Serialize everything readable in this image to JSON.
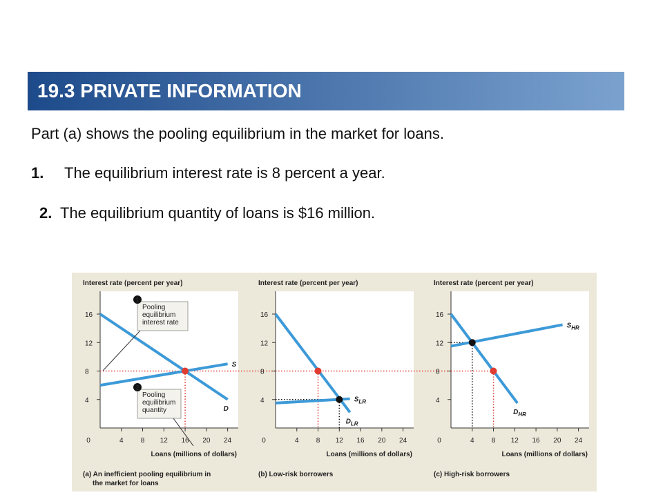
{
  "header": {
    "title": "19.3 PRIVATE INFORMATION"
  },
  "text": {
    "intro": "Part (a) shows the pooling equilibrium in the market for loans.",
    "points": [
      {
        "number": "1.",
        "text": "The equilibrium interest rate is 8 percent a year."
      },
      {
        "number": "2.",
        "text": "The equilibrium quantity of loans is $16 million."
      }
    ]
  },
  "chart_data": [
    {
      "type": "line",
      "y_title": "Interest rate (percent per year)",
      "x_title": "Loans (millions of dollars)",
      "caption": [
        "(a) An inefficient pooling equilibrium in",
        "the market for loans"
      ],
      "xlim": [
        0,
        26
      ],
      "ylim": [
        0,
        19.2
      ],
      "xticks": [
        0,
        4,
        8,
        12,
        16,
        20,
        24
      ],
      "yticks": [
        4,
        8,
        12,
        16
      ],
      "series": [
        {
          "name": "S",
          "color": "#3d9ad8",
          "x": [
            0,
            24
          ],
          "values": [
            6,
            9
          ]
        },
        {
          "name": "D",
          "color": "#3d9ad8",
          "x": [
            0,
            24
          ],
          "values": [
            16,
            4
          ]
        }
      ],
      "points": [
        {
          "x": 16,
          "y": 8,
          "color": "#e03c31"
        }
      ],
      "annotations": [
        {
          "number": "1",
          "lines": [
            "Pooling",
            "equilibrium",
            "interest rate"
          ]
        },
        {
          "number": "2",
          "lines": [
            "Pooling",
            "equilibrium",
            "quantity"
          ]
        }
      ]
    },
    {
      "type": "line",
      "y_title": "Interest rate (percent per year)",
      "x_title": "Loans (millions of dollars)",
      "caption": [
        "(b) Low-risk borrowers"
      ],
      "xlim": [
        0,
        26
      ],
      "ylim": [
        0,
        19.2
      ],
      "xticks": [
        0,
        4,
        8,
        12,
        16,
        20,
        24
      ],
      "yticks": [
        4,
        8,
        12,
        16
      ],
      "series": [
        {
          "name": "S",
          "name_sub": "LR",
          "color": "#3d9ad8",
          "x": [
            0,
            14
          ],
          "values": [
            3.5,
            4.1
          ]
        },
        {
          "name": "D",
          "name_sub": "LR",
          "color": "#3d9ad8",
          "x": [
            0,
            14
          ],
          "values": [
            16,
            2.2
          ]
        }
      ],
      "points": [
        {
          "x": 8,
          "y": 8,
          "color": "#e03c31"
        },
        {
          "x": 12,
          "y": 4,
          "color": "#111111"
        }
      ]
    },
    {
      "type": "line",
      "y_title": "Interest rate (percent per year)",
      "x_title": "Loans (millions of dollars)",
      "caption": [
        "(c) High-risk borrowers"
      ],
      "xlim": [
        0,
        26
      ],
      "ylim": [
        0,
        19.2
      ],
      "xticks": [
        0,
        4,
        8,
        12,
        16,
        20,
        24
      ],
      "yticks": [
        4,
        8,
        12,
        16
      ],
      "series": [
        {
          "name": "S",
          "name_sub": "HR",
          "color": "#3d9ad8",
          "x": [
            0,
            21
          ],
          "values": [
            11.5,
            14.5
          ]
        },
        {
          "name": "D",
          "name_sub": "HR",
          "color": "#3d9ad8",
          "x": [
            0,
            12.5
          ],
          "values": [
            16,
            3.5
          ]
        }
      ],
      "points": [
        {
          "x": 4,
          "y": 12,
          "color": "#111111"
        },
        {
          "x": 8,
          "y": 8,
          "color": "#e03c31"
        }
      ]
    }
  ]
}
